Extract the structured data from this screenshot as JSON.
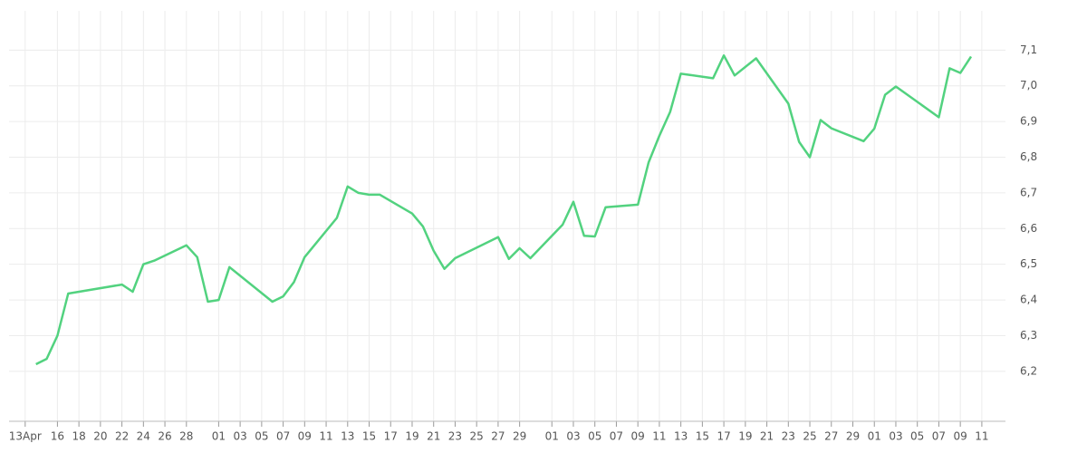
{
  "chart_data": {
    "type": "line",
    "color": "#52d27f",
    "grid": true,
    "y_axis_side": "right",
    "x": [
      1,
      2,
      3,
      4,
      9,
      10,
      11,
      12,
      15,
      16,
      17,
      18,
      19,
      23,
      24,
      25,
      26,
      29,
      30,
      31,
      32,
      33,
      36,
      37,
      38,
      39,
      40,
      44,
      45,
      46,
      47,
      50,
      51,
      52,
      53,
      54,
      57,
      58,
      59,
      60,
      61,
      64,
      65,
      66,
      68,
      71,
      72,
      73,
      74,
      75,
      78,
      79,
      80,
      81,
      85,
      86,
      87,
      88
    ],
    "values": [
      6.22,
      6.235,
      6.3,
      6.418,
      6.443,
      6.423,
      6.5,
      6.51,
      6.553,
      6.52,
      6.395,
      6.4,
      6.492,
      6.395,
      6.41,
      6.45,
      6.52,
      6.63,
      6.718,
      6.7,
      6.695,
      6.695,
      6.642,
      6.606,
      6.538,
      6.487,
      6.517,
      6.576,
      6.515,
      6.545,
      6.517,
      6.611,
      6.675,
      6.58,
      6.578,
      6.66,
      6.667,
      6.785,
      6.86,
      6.927,
      7.034,
      7.021,
      7.085,
      7.029,
      7.077,
      6.95,
      6.843,
      6.8,
      6.904,
      6.881,
      6.845,
      6.88,
      6.975,
      6.998,
      6.912,
      7.049,
      7.036,
      7.082
    ],
    "xlim": [
      -1.5,
      91.2
    ],
    "xticks": [
      {
        "value": 0,
        "label": "13Apr"
      },
      {
        "value": 3,
        "label": "16"
      },
      {
        "value": 5,
        "label": "18"
      },
      {
        "value": 7,
        "label": "20"
      },
      {
        "value": 9,
        "label": "22"
      },
      {
        "value": 11,
        "label": "24"
      },
      {
        "value": 13,
        "label": "26"
      },
      {
        "value": 15,
        "label": "28"
      },
      {
        "value": 18,
        "label": "01"
      },
      {
        "value": 20,
        "label": "03"
      },
      {
        "value": 22,
        "label": "05"
      },
      {
        "value": 24,
        "label": "07"
      },
      {
        "value": 26,
        "label": "09"
      },
      {
        "value": 28,
        "label": "11"
      },
      {
        "value": 30,
        "label": "13"
      },
      {
        "value": 32,
        "label": "15"
      },
      {
        "value": 34,
        "label": "17"
      },
      {
        "value": 36,
        "label": "19"
      },
      {
        "value": 38,
        "label": "21"
      },
      {
        "value": 40,
        "label": "23"
      },
      {
        "value": 42,
        "label": "25"
      },
      {
        "value": 44,
        "label": "27"
      },
      {
        "value": 46,
        "label": "29"
      },
      {
        "value": 49,
        "label": "01"
      },
      {
        "value": 51,
        "label": "03"
      },
      {
        "value": 53,
        "label": "05"
      },
      {
        "value": 55,
        "label": "07"
      },
      {
        "value": 57,
        "label": "09"
      },
      {
        "value": 59,
        "label": "11"
      },
      {
        "value": 61,
        "label": "13"
      },
      {
        "value": 63,
        "label": "15"
      },
      {
        "value": 65,
        "label": "17"
      },
      {
        "value": 67,
        "label": "19"
      },
      {
        "value": 69,
        "label": "21"
      },
      {
        "value": 71,
        "label": "23"
      },
      {
        "value": 73,
        "label": "25"
      },
      {
        "value": 75,
        "label": "27"
      },
      {
        "value": 77,
        "label": "29"
      },
      {
        "value": 79,
        "label": "01"
      },
      {
        "value": 81,
        "label": "03"
      },
      {
        "value": 83,
        "label": "05"
      },
      {
        "value": 85,
        "label": "07"
      },
      {
        "value": 87,
        "label": "09"
      },
      {
        "value": 89,
        "label": "11"
      }
    ],
    "ylim": [
      6.06,
      7.21
    ],
    "yticks": [
      {
        "value": 6.2,
        "label": "6,2"
      },
      {
        "value": 6.3,
        "label": "6,3"
      },
      {
        "value": 6.4,
        "label": "6,4"
      },
      {
        "value": 6.5,
        "label": "6,5"
      },
      {
        "value": 6.6,
        "label": "6,6"
      },
      {
        "value": 6.7,
        "label": "6,7"
      },
      {
        "value": 6.8,
        "label": "6,8"
      },
      {
        "value": 6.9,
        "label": "6,9"
      },
      {
        "value": 7.0,
        "label": "7,0"
      },
      {
        "value": 7.1,
        "label": "7,1"
      }
    ]
  }
}
